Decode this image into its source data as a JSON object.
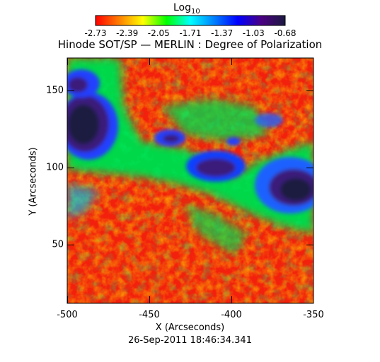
{
  "colorbar": {
    "title_base": "Log",
    "title_sub": "10",
    "ticks": [
      "-2.73",
      "-2.39",
      "-2.05",
      "-1.71",
      "-1.37",
      "-1.03",
      "-0.68"
    ],
    "stops": [
      "#ff0000",
      "#ff7f00",
      "#ffff00",
      "#00ff00",
      "#00ffff",
      "#0080ff",
      "#0000ff",
      "#4b0082",
      "#1a1a40"
    ]
  },
  "plot": {
    "title": "Hinode SOT/SP — MERLIN : Degree of Polarization",
    "x_label": "X (Arcseconds)",
    "y_label": "Y (Arcseconds)",
    "x_ticks": [
      "-500",
      "-450",
      "-400",
      "-350"
    ],
    "y_ticks": [
      "150",
      "100",
      "50"
    ],
    "timestamp": "26-Sep-2011 18:46:34.341"
  }
}
